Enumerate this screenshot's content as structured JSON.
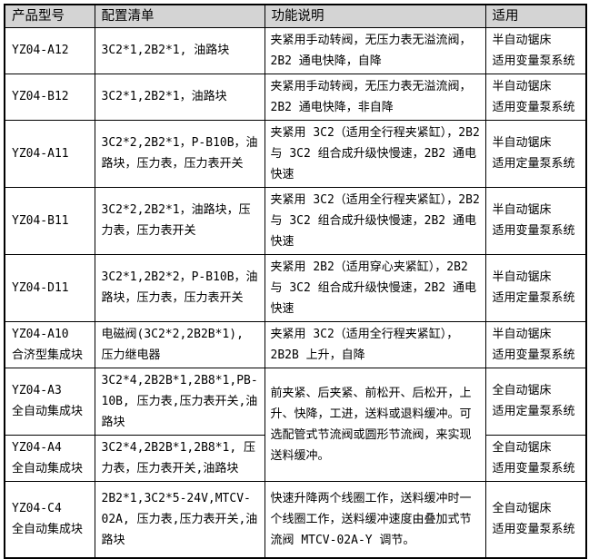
{
  "colors": {
    "header_background": "#d4d4d4",
    "cell_background": "#ffffff",
    "border": "#000000",
    "text": "#000000"
  },
  "table": {
    "headers": {
      "model": "产品型号",
      "config": "配置清单",
      "function": "功能说明",
      "applicable": "适用"
    },
    "rows": [
      {
        "model": "YZ04-A12",
        "config": "3C2*1,2B2*1, 油路块",
        "function": "夹紧用手动转阀，无压力表无溢流阀， 2B2 通电快降，自降",
        "applicable": "半自动锯床\n适用变量泵系统"
      },
      {
        "model": "YZ04-B12",
        "config": "3C2*1,2B2*1，油路块",
        "function": "夹紧用手动转阀，无压力表无溢流阀， 2B2 通电快降，非自降",
        "applicable": "半自动锯床\n适用变量泵系统"
      },
      {
        "model": "YZ04-A11",
        "config": "3C2*2,2B2*1，P-B10B，油路块，压力表，压力表开关",
        "function": "夹紧用 3C2（适用全行程夹紧缸），2B2 与 3C2 组合成升级快慢速，2B2 通电快速",
        "applicable": "半自动锯床\n适用定量泵系统"
      },
      {
        "model": "YZ04-B11",
        "config": "3C2*2,2B2*1，油路块，压力表，压力表开关",
        "function": "夹紧用 3C2（适用全行程夹紧缸），2B2 与 3C2 组合成升级快慢速，2B2 通电快速",
        "applicable": "半自动锯床\n适用变量泵系统"
      },
      {
        "model": "YZ04-D11",
        "config": "3C2*1,2B2*2，P-B10B，油路块，压力表，压力表开关",
        "function": "夹紧用 2B2（适用穿心夹紧缸），2B2 与 3C2 组合成升级快慢速，2B2 通电快速",
        "applicable": "半自动锯床\n适用定量泵系统"
      },
      {
        "model": "YZ04-A10\n合济型集成块",
        "config": "电磁阀(3C2*2,2B2B*1), 压力继电器",
        "function": "夹紧用 3C2（适用全行程夹紧缸），2B2B 上升，自降",
        "applicable": "半自动锯床\n适用变量泵系统"
      },
      {
        "model": "YZ04-A3\n全自动集成块",
        "config": "3C2*4,2B2B*1,2B8*1,PB-10B, 压力表,压力表开关,油路块",
        "function": "前夹紧、后夹紧、前松开、后松开，上升、快降，工进，送料或退料缓冲。可选配管式节流阀或圆形节流阀，来实现送料缓冲。",
        "applicable": "全自动锯床\n适用定量泵系统"
      },
      {
        "model": "YZ04-A4\n全自动集成块",
        "config": "3C2*4,2B2B*1,2B8*1, 压力表，压力表开关,油路块",
        "applicable": "全自动锯床\n适用变量泵系统"
      },
      {
        "model": "YZ04-C4\n全自动集成块",
        "config": "2B2*1,3C2*5-24V,MTCV-02A, 压力表,压力表开关,油路块",
        "function": "快速升降两个线圈工作，送料缓冲时一个线圈工作，送料缓冲速度由叠加式节流阀 MTCV-02A-Y 调节。",
        "applicable": "全自动锯床\n适用变量泵系统"
      }
    ]
  }
}
